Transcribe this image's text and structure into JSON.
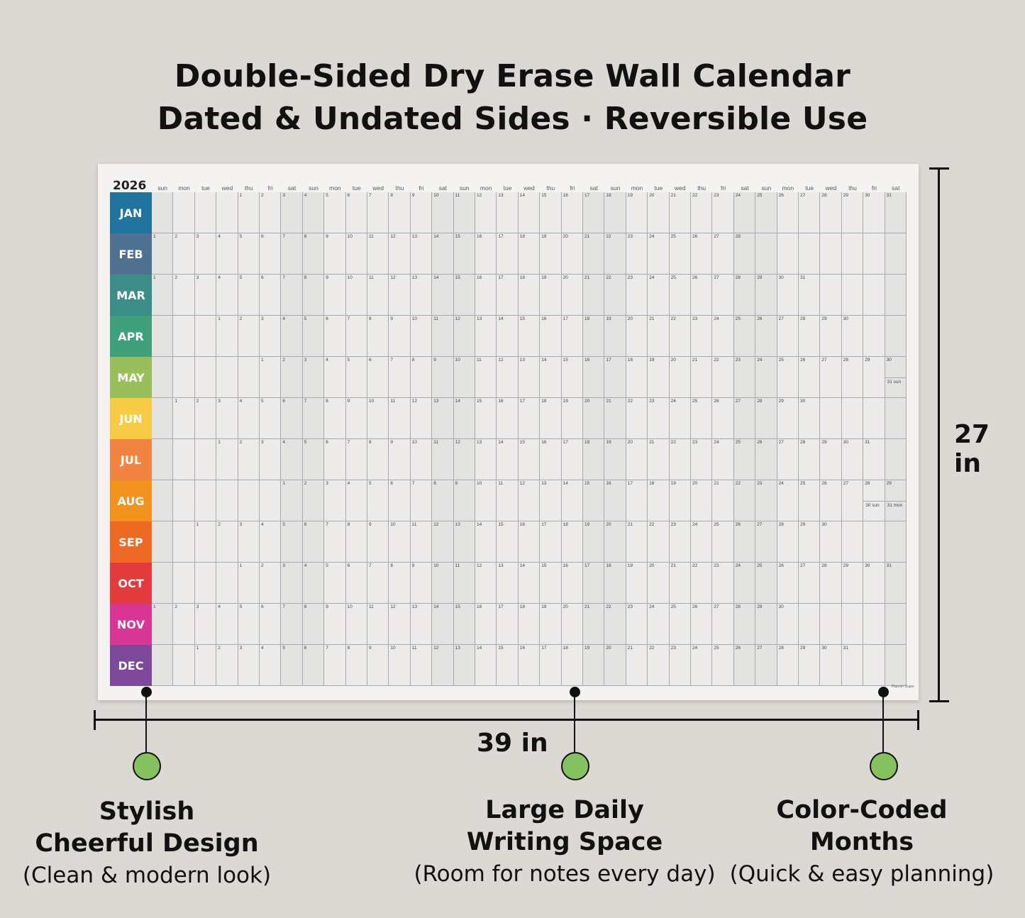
{
  "headline": {
    "line1": "Double-Sided Dry Erase Wall Calendar",
    "line2": "Dated & Undated Sides · Reversible Use"
  },
  "calendar": {
    "year": "2026",
    "day_headers": [
      "sun",
      "mon",
      "tue",
      "wed",
      "thu",
      "fri",
      "sat",
      "sun",
      "mon",
      "tue",
      "wed",
      "thu",
      "fri",
      "sat",
      "sun",
      "mon",
      "tue",
      "wed",
      "thu",
      "fri",
      "sat",
      "sun",
      "mon",
      "tue",
      "wed",
      "thu",
      "fri",
      "sat",
      "sun",
      "mon",
      "tue",
      "wed",
      "thu",
      "fri",
      "sat"
    ],
    "months": [
      {
        "label": "JAN",
        "color": "#1f75a0",
        "offset": 4,
        "days": 31
      },
      {
        "label": "FEB",
        "color": "#4f708f",
        "offset": 0,
        "days": 28
      },
      {
        "label": "MAR",
        "color": "#3b8e88",
        "offset": 0,
        "days": 31
      },
      {
        "label": "APR",
        "color": "#40a07e",
        "offset": 3,
        "days": 30
      },
      {
        "label": "MAY",
        "color": "#99bf5b",
        "offset": 5,
        "days": 30,
        "extra": "31 sun"
      },
      {
        "label": "JUN",
        "color": "#f7cb43",
        "offset": 1,
        "days": 30
      },
      {
        "label": "JUL",
        "color": "#f08440",
        "offset": 3,
        "days": 31
      },
      {
        "label": "AUG",
        "color": "#f3921c",
        "offset": 6,
        "days": 29,
        "extra": "30 sun",
        "extra2": "31 mon"
      },
      {
        "label": "SEP",
        "color": "#ee6a24",
        "offset": 2,
        "days": 30
      },
      {
        "label": "OCT",
        "color": "#e33a3e",
        "offset": 4,
        "days": 31
      },
      {
        "label": "NOV",
        "color": "#d93595",
        "offset": 0,
        "days": 30
      },
      {
        "label": "DEC",
        "color": "#7d4a9b",
        "offset": 2,
        "days": 31
      }
    ],
    "brand": "Planner Super"
  },
  "dimensions": {
    "height": "27 in",
    "width": "39 in"
  },
  "features": [
    {
      "title1": "Stylish",
      "title2": "Cheerful Design",
      "subtitle": "(Clean & modern look)"
    },
    {
      "title1": "Large Daily",
      "title2": "Writing Space",
      "subtitle": "(Room for notes every day)"
    },
    {
      "title1": "Color-Coded",
      "title2": "Months",
      "subtitle": "(Quick & easy planning)"
    }
  ],
  "colors": {
    "background": "#dcd9d4",
    "feature_dot": "#86c15f"
  }
}
